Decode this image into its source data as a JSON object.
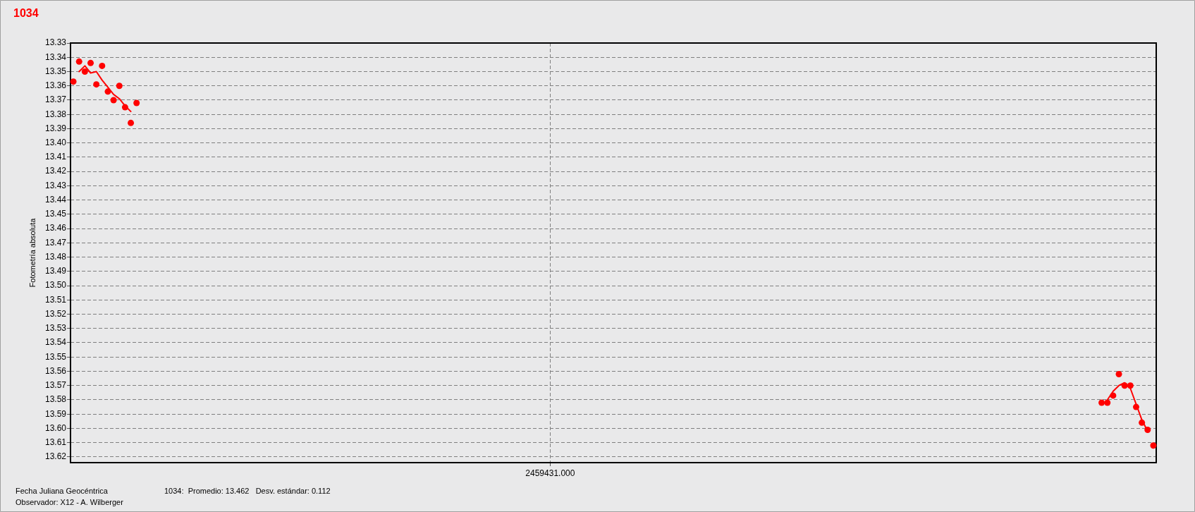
{
  "chart_data": {
    "type": "scatter",
    "title": "1034",
    "xlabel": "Fecha Juliana Geocéntrica",
    "ylabel": "Fotometría absoluta",
    "annotations": [
      "1034:  Promedio: 13.462   Desv. estándar: 0.112",
      "Observador: X12 - A. Wilberger"
    ],
    "categories": [
      null,
      null,
      null,
      null,
      null,
      null,
      null,
      null,
      null,
      null,
      null,
      null,
      null,
      null,
      null,
      null,
      null,
      null,
      null,
      null,
      null,
      null,
      null,
      null,
      null,
      null,
      null,
      null,
      null,
      null,
      null,
      null,
      null,
      null,
      null,
      null,
      null,
      null,
      null,
      null,
      null,
      null,
      null,
      null,
      null,
      null,
      null,
      null,
      null,
      null,
      null,
      null,
      null,
      null,
      null,
      null,
      null,
      null,
      null,
      null,
      null,
      null,
      null,
      null,
      null,
      null,
      null,
      null,
      null,
      null,
      null,
      null,
      null,
      null,
      null,
      null,
      null,
      null,
      null,
      null,
      null,
      null,
      null,
      "2459431.000",
      null,
      null,
      null,
      null,
      null,
      null,
      null,
      null,
      null,
      null,
      null,
      null,
      null,
      null,
      null,
      null,
      null,
      null,
      null,
      null,
      null,
      null,
      null,
      null,
      null,
      null,
      null,
      null,
      null,
      null,
      null,
      null,
      null,
      null,
      null,
      null,
      null,
      null,
      null,
      null,
      null,
      null,
      null,
      null,
      null,
      null,
      null,
      null,
      null,
      null,
      null,
      null,
      null,
      null,
      null,
      null,
      null,
      null,
      null,
      null,
      null,
      null,
      null,
      null,
      null,
      null,
      null,
      null,
      null,
      null,
      null,
      null,
      null,
      null,
      null,
      null,
      null,
      null,
      null,
      null,
      null,
      null,
      null,
      null,
      null,
      null,
      null,
      null,
      null,
      null,
      null,
      null,
      null,
      null,
      null,
      null,
      null,
      null,
      null,
      null,
      null,
      null,
      null,
      null,
      null
    ],
    "series": [
      {
        "type": "scatter",
        "color": "#ff0000",
        "values": [
          13.357,
          13.343,
          13.35,
          13.344,
          13.359,
          13.346,
          13.364,
          13.37,
          13.36,
          13.375,
          13.386,
          13.372,
          null,
          null,
          null,
          null,
          null,
          null,
          null,
          null,
          null,
          null,
          null,
          null,
          null,
          null,
          null,
          null,
          null,
          null,
          null,
          null,
          null,
          null,
          null,
          null,
          null,
          null,
          null,
          null,
          null,
          null,
          null,
          null,
          null,
          null,
          null,
          null,
          null,
          null,
          null,
          null,
          null,
          null,
          null,
          null,
          null,
          null,
          null,
          null,
          null,
          null,
          null,
          null,
          null,
          null,
          null,
          null,
          null,
          null,
          null,
          null,
          null,
          null,
          null,
          null,
          null,
          null,
          null,
          null,
          null,
          null,
          null,
          null,
          null,
          null,
          null,
          null,
          null,
          null,
          null,
          null,
          null,
          null,
          null,
          null,
          null,
          null,
          null,
          null,
          null,
          null,
          null,
          null,
          null,
          null,
          null,
          null,
          null,
          null,
          null,
          null,
          null,
          null,
          null,
          null,
          null,
          null,
          null,
          null,
          null,
          null,
          null,
          null,
          null,
          null,
          null,
          null,
          null,
          null,
          null,
          null,
          null,
          null,
          null,
          null,
          null,
          null,
          null,
          null,
          null,
          null,
          null,
          null,
          null,
          null,
          null,
          null,
          null,
          null,
          null,
          null,
          null,
          null,
          null,
          null,
          null,
          null,
          null,
          null,
          null,
          null,
          null,
          null,
          null,
          null,
          null,
          null,
          null,
          null,
          null,
          null,
          null,
          null,
          null,
          null,
          null,
          null,
          null,
          13.582,
          13.582,
          13.577,
          13.562,
          13.57,
          13.57,
          13.585,
          13.596,
          13.601,
          13.612
        ]
      },
      {
        "type": "line",
        "color": "#ff0000",
        "marker": "none",
        "values": [
          null,
          13.35,
          13.346,
          13.351,
          13.35,
          13.356,
          13.361,
          13.366,
          13.369,
          13.374,
          13.378,
          null,
          null,
          null,
          null,
          null,
          null,
          null,
          null,
          null,
          null,
          null,
          null,
          null,
          null,
          null,
          null,
          null,
          null,
          null,
          null,
          null,
          null,
          null,
          null,
          null,
          null,
          null,
          null,
          null,
          null,
          null,
          null,
          null,
          null,
          null,
          null,
          null,
          null,
          null,
          null,
          null,
          null,
          null,
          null,
          null,
          null,
          null,
          null,
          null,
          null,
          null,
          null,
          null,
          null,
          null,
          null,
          null,
          null,
          null,
          null,
          null,
          null,
          null,
          null,
          null,
          null,
          null,
          null,
          null,
          null,
          null,
          null,
          null,
          null,
          null,
          null,
          null,
          null,
          null,
          null,
          null,
          null,
          null,
          null,
          null,
          null,
          null,
          null,
          null,
          null,
          null,
          null,
          null,
          null,
          null,
          null,
          null,
          null,
          null,
          null,
          null,
          null,
          null,
          null,
          null,
          null,
          null,
          null,
          null,
          null,
          null,
          null,
          null,
          null,
          null,
          null,
          null,
          null,
          null,
          null,
          null,
          null,
          null,
          null,
          null,
          null,
          null,
          null,
          null,
          null,
          null,
          null,
          null,
          null,
          null,
          null,
          null,
          null,
          null,
          null,
          null,
          null,
          null,
          null,
          null,
          null,
          null,
          null,
          null,
          null,
          null,
          null,
          null,
          null,
          null,
          null,
          null,
          null,
          null,
          null,
          null,
          null,
          null,
          null,
          null,
          null,
          null,
          null,
          null,
          13.58,
          13.574,
          13.57,
          13.568,
          13.572,
          13.583,
          13.594,
          13.602,
          null
        ]
      }
    ],
    "ylim": [
      13.624,
      13.33
    ],
    "yticks": [
      13.33,
      13.34,
      13.35,
      13.36,
      13.37,
      13.38,
      13.39,
      {
        "value": 13.4,
        "label": "13.40"
      },
      13.41,
      13.42,
      13.43,
      13.44,
      13.45,
      13.46,
      13.47,
      13.48,
      13.49,
      {
        "value": 13.5,
        "label": "13.50"
      },
      13.51,
      13.52,
      13.53,
      13.54,
      13.55,
      13.56,
      13.57,
      13.58,
      13.59,
      {
        "value": 13.6,
        "label": "13.60"
      },
      13.61,
      13.62
    ],
    "grid": true,
    "marker": "circle",
    "line_style": "solid"
  }
}
